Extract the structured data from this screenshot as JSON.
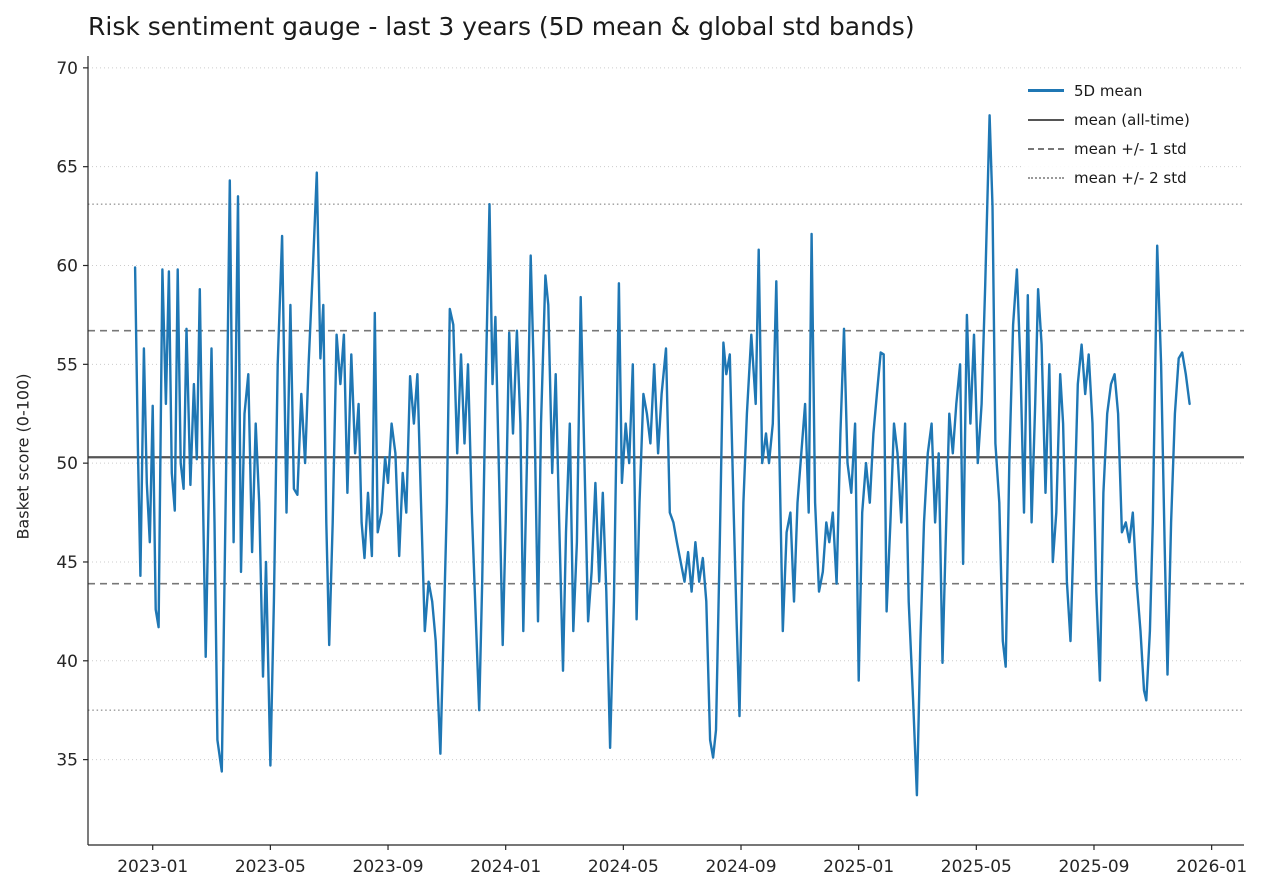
{
  "chart_data": {
    "type": "line",
    "title": "Risk sentiment gauge - last 3 years (5D mean & global std bands)",
    "xlabel": "",
    "ylabel": "Basket score (0-100)",
    "x_unit": "months since 2023-01",
    "xlim": [
      -2.2,
      37.1
    ],
    "ylim": [
      30.68,
      70.6
    ],
    "grid": "horizontal-dotted",
    "legend_position": "upper right",
    "series_color": "#1f77b4",
    "mean_color": "#555555",
    "std1_color": "#777777",
    "std2_color": "#999999",
    "grid_color": "#cccccc",
    "mean": 50.3,
    "std": 6.4,
    "band_plus_1std": 56.7,
    "band_minus_1std": 43.9,
    "band_plus_2std": 63.1,
    "band_minus_2std": 37.5,
    "yticks": [
      35,
      40,
      45,
      50,
      55,
      60,
      65,
      70
    ],
    "xticks": [
      {
        "t": 0,
        "label": "2023-01"
      },
      {
        "t": 4,
        "label": "2023-05"
      },
      {
        "t": 8,
        "label": "2023-09"
      },
      {
        "t": 12,
        "label": "2024-01"
      },
      {
        "t": 16,
        "label": "2024-05"
      },
      {
        "t": 20,
        "label": "2024-09"
      },
      {
        "t": 24,
        "label": "2025-01"
      },
      {
        "t": 28,
        "label": "2025-05"
      },
      {
        "t": 32,
        "label": "2025-09"
      },
      {
        "t": 36,
        "label": "2026-01"
      }
    ],
    "legend": [
      {
        "label": "5D mean",
        "style": "solid",
        "color": "#1f77b4",
        "width": 3
      },
      {
        "label": "mean (all-time)",
        "style": "solid",
        "color": "#555555",
        "width": 2
      },
      {
        "label": "mean +/- 1 std",
        "style": "dashed",
        "color": "#777777",
        "width": 1.6
      },
      {
        "label": "mean +/- 2 std",
        "style": "dotted",
        "color": "#999999",
        "width": 1.4
      }
    ],
    "points": [
      [
        -0.6,
        59.9
      ],
      [
        -0.5,
        50.5
      ],
      [
        -0.42,
        44.3
      ],
      [
        -0.3,
        55.8
      ],
      [
        -0.2,
        49.0
      ],
      [
        -0.1,
        46.0
      ],
      [
        0.0,
        52.9
      ],
      [
        0.1,
        42.6
      ],
      [
        0.2,
        41.7
      ],
      [
        0.33,
        59.8
      ],
      [
        0.45,
        53.0
      ],
      [
        0.55,
        59.7
      ],
      [
        0.65,
        49.5
      ],
      [
        0.75,
        47.6
      ],
      [
        0.85,
        59.8
      ],
      [
        0.95,
        50.0
      ],
      [
        1.05,
        48.7
      ],
      [
        1.15,
        56.8
      ],
      [
        1.28,
        48.9
      ],
      [
        1.4,
        54.0
      ],
      [
        1.5,
        50.2
      ],
      [
        1.6,
        58.8
      ],
      [
        1.7,
        49.0
      ],
      [
        1.8,
        40.2
      ],
      [
        1.9,
        48.0
      ],
      [
        2.0,
        55.8
      ],
      [
        2.1,
        47.0
      ],
      [
        2.2,
        36.0
      ],
      [
        2.35,
        34.4
      ],
      [
        2.5,
        50.0
      ],
      [
        2.62,
        64.3
      ],
      [
        2.75,
        46.0
      ],
      [
        2.9,
        63.5
      ],
      [
        3.0,
        44.5
      ],
      [
        3.12,
        52.5
      ],
      [
        3.25,
        54.5
      ],
      [
        3.38,
        45.5
      ],
      [
        3.5,
        52.0
      ],
      [
        3.62,
        48.0
      ],
      [
        3.75,
        39.2
      ],
      [
        3.85,
        45.0
      ],
      [
        4.0,
        34.7
      ],
      [
        4.12,
        43.0
      ],
      [
        4.25,
        55.0
      ],
      [
        4.4,
        61.5
      ],
      [
        4.55,
        47.5
      ],
      [
        4.68,
        58.0
      ],
      [
        4.8,
        48.7
      ],
      [
        4.92,
        48.4
      ],
      [
        5.05,
        53.5
      ],
      [
        5.18,
        50.0
      ],
      [
        5.3,
        55.0
      ],
      [
        5.45,
        60.0
      ],
      [
        5.58,
        64.7
      ],
      [
        5.7,
        55.3
      ],
      [
        5.8,
        58.0
      ],
      [
        5.9,
        47.0
      ],
      [
        6.0,
        40.8
      ],
      [
        6.12,
        47.0
      ],
      [
        6.25,
        56.5
      ],
      [
        6.38,
        54.0
      ],
      [
        6.5,
        56.5
      ],
      [
        6.62,
        48.5
      ],
      [
        6.75,
        55.5
      ],
      [
        6.88,
        50.5
      ],
      [
        7.0,
        53.0
      ],
      [
        7.1,
        47.0
      ],
      [
        7.2,
        45.2
      ],
      [
        7.32,
        48.5
      ],
      [
        7.45,
        45.3
      ],
      [
        7.55,
        57.6
      ],
      [
        7.65,
        46.5
      ],
      [
        7.78,
        47.5
      ],
      [
        7.9,
        50.3
      ],
      [
        8.0,
        49.0
      ],
      [
        8.12,
        52.0
      ],
      [
        8.25,
        50.5
      ],
      [
        8.38,
        45.3
      ],
      [
        8.5,
        49.5
      ],
      [
        8.62,
        47.5
      ],
      [
        8.75,
        54.4
      ],
      [
        8.88,
        52.0
      ],
      [
        9.0,
        54.5
      ],
      [
        9.12,
        48.0
      ],
      [
        9.25,
        41.5
      ],
      [
        9.38,
        44.0
      ],
      [
        9.5,
        43.0
      ],
      [
        9.62,
        41.0
      ],
      [
        9.78,
        35.3
      ],
      [
        9.9,
        42.0
      ],
      [
        10.0,
        48.0
      ],
      [
        10.1,
        57.8
      ],
      [
        10.22,
        57.0
      ],
      [
        10.35,
        50.5
      ],
      [
        10.48,
        55.5
      ],
      [
        10.6,
        51.0
      ],
      [
        10.72,
        55.0
      ],
      [
        10.85,
        47.5
      ],
      [
        10.95,
        43.5
      ],
      [
        11.1,
        37.5
      ],
      [
        11.2,
        44.0
      ],
      [
        11.32,
        54.0
      ],
      [
        11.45,
        63.1
      ],
      [
        11.55,
        54.0
      ],
      [
        11.65,
        57.4
      ],
      [
        11.78,
        49.0
      ],
      [
        11.9,
        40.8
      ],
      [
        12.0,
        47.0
      ],
      [
        12.12,
        56.6
      ],
      [
        12.25,
        51.5
      ],
      [
        12.38,
        56.7
      ],
      [
        12.5,
        52.0
      ],
      [
        12.6,
        41.5
      ],
      [
        12.72,
        50.0
      ],
      [
        12.85,
        60.5
      ],
      [
        12.95,
        55.0
      ],
      [
        13.1,
        42.0
      ],
      [
        13.2,
        52.0
      ],
      [
        13.35,
        59.5
      ],
      [
        13.45,
        58.0
      ],
      [
        13.58,
        49.5
      ],
      [
        13.7,
        54.5
      ],
      [
        13.82,
        47.0
      ],
      [
        13.95,
        39.5
      ],
      [
        14.05,
        46.5
      ],
      [
        14.18,
        52.0
      ],
      [
        14.3,
        41.5
      ],
      [
        14.42,
        46.0
      ],
      [
        14.55,
        58.4
      ],
      [
        14.68,
        50.0
      ],
      [
        14.8,
        42.0
      ],
      [
        14.92,
        44.5
      ],
      [
        15.05,
        49.0
      ],
      [
        15.18,
        44.0
      ],
      [
        15.3,
        48.5
      ],
      [
        15.42,
        43.5
      ],
      [
        15.55,
        35.6
      ],
      [
        15.68,
        43.0
      ],
      [
        15.85,
        59.1
      ],
      [
        15.95,
        49.0
      ],
      [
        16.08,
        52.0
      ],
      [
        16.2,
        50.0
      ],
      [
        16.32,
        55.0
      ],
      [
        16.45,
        42.1
      ],
      [
        16.55,
        48.0
      ],
      [
        16.68,
        53.5
      ],
      [
        16.8,
        52.5
      ],
      [
        16.92,
        51.0
      ],
      [
        17.05,
        55.0
      ],
      [
        17.18,
        50.5
      ],
      [
        17.3,
        53.5
      ],
      [
        17.45,
        55.8
      ],
      [
        17.58,
        47.5
      ],
      [
        17.7,
        47.0
      ],
      [
        17.82,
        46.0
      ],
      [
        17.95,
        45.0
      ],
      [
        18.08,
        44.0
      ],
      [
        18.2,
        45.5
      ],
      [
        18.32,
        43.5
      ],
      [
        18.45,
        46.0
      ],
      [
        18.58,
        44.0
      ],
      [
        18.7,
        45.2
      ],
      [
        18.82,
        43.0
      ],
      [
        18.95,
        36.0
      ],
      [
        19.05,
        35.1
      ],
      [
        19.15,
        36.5
      ],
      [
        19.28,
        46.0
      ],
      [
        19.4,
        56.1
      ],
      [
        19.5,
        54.5
      ],
      [
        19.62,
        55.5
      ],
      [
        19.75,
        47.5
      ],
      [
        19.85,
        42.0
      ],
      [
        19.95,
        37.2
      ],
      [
        20.08,
        48.0
      ],
      [
        20.2,
        52.5
      ],
      [
        20.35,
        56.5
      ],
      [
        20.5,
        53.0
      ],
      [
        20.6,
        60.8
      ],
      [
        20.72,
        50.0
      ],
      [
        20.85,
        51.5
      ],
      [
        20.95,
        50.0
      ],
      [
        21.08,
        52.0
      ],
      [
        21.2,
        59.2
      ],
      [
        21.3,
        51.0
      ],
      [
        21.42,
        41.5
      ],
      [
        21.55,
        46.5
      ],
      [
        21.68,
        47.5
      ],
      [
        21.8,
        43.0
      ],
      [
        21.92,
        48.0
      ],
      [
        22.05,
        50.5
      ],
      [
        22.18,
        53.0
      ],
      [
        22.3,
        47.5
      ],
      [
        22.4,
        61.6
      ],
      [
        22.52,
        48.0
      ],
      [
        22.65,
        43.5
      ],
      [
        22.78,
        44.5
      ],
      [
        22.9,
        47.0
      ],
      [
        23.0,
        46.0
      ],
      [
        23.12,
        47.5
      ],
      [
        23.25,
        43.9
      ],
      [
        23.38,
        51.5
      ],
      [
        23.5,
        56.8
      ],
      [
        23.62,
        50.0
      ],
      [
        23.75,
        48.5
      ],
      [
        23.88,
        52.0
      ],
      [
        24.0,
        39.0
      ],
      [
        24.12,
        47.5
      ],
      [
        24.25,
        50.0
      ],
      [
        24.38,
        48.0
      ],
      [
        24.5,
        51.5
      ],
      [
        24.62,
        53.5
      ],
      [
        24.75,
        55.6
      ],
      [
        24.85,
        55.5
      ],
      [
        24.95,
        42.5
      ],
      [
        25.08,
        47.0
      ],
      [
        25.2,
        52.0
      ],
      [
        25.32,
        50.5
      ],
      [
        25.45,
        47.0
      ],
      [
        25.58,
        52.0
      ],
      [
        25.7,
        43.0
      ],
      [
        25.85,
        38.0
      ],
      [
        25.98,
        33.2
      ],
      [
        26.1,
        41.0
      ],
      [
        26.22,
        47.0
      ],
      [
        26.35,
        50.5
      ],
      [
        26.48,
        52.0
      ],
      [
        26.6,
        47.0
      ],
      [
        26.72,
        50.5
      ],
      [
        26.85,
        39.9
      ],
      [
        26.95,
        45.5
      ],
      [
        27.08,
        52.5
      ],
      [
        27.2,
        50.5
      ],
      [
        27.32,
        53.0
      ],
      [
        27.45,
        55.0
      ],
      [
        27.55,
        44.9
      ],
      [
        27.68,
        57.5
      ],
      [
        27.8,
        52.0
      ],
      [
        27.92,
        56.5
      ],
      [
        28.05,
        50.0
      ],
      [
        28.18,
        53.0
      ],
      [
        28.3,
        59.0
      ],
      [
        28.45,
        67.6
      ],
      [
        28.55,
        63.0
      ],
      [
        28.65,
        51.0
      ],
      [
        28.78,
        48.0
      ],
      [
        28.9,
        41.0
      ],
      [
        29.0,
        39.7
      ],
      [
        29.12,
        50.0
      ],
      [
        29.25,
        57.0
      ],
      [
        29.38,
        59.8
      ],
      [
        29.5,
        55.0
      ],
      [
        29.62,
        47.5
      ],
      [
        29.75,
        58.5
      ],
      [
        29.88,
        47.0
      ],
      [
        30.0,
        53.0
      ],
      [
        30.1,
        58.8
      ],
      [
        30.22,
        56.0
      ],
      [
        30.35,
        48.5
      ],
      [
        30.48,
        55.0
      ],
      [
        30.6,
        45.0
      ],
      [
        30.72,
        47.5
      ],
      [
        30.85,
        54.5
      ],
      [
        30.95,
        52.0
      ],
      [
        31.08,
        44.0
      ],
      [
        31.2,
        41.0
      ],
      [
        31.32,
        47.0
      ],
      [
        31.45,
        54.0
      ],
      [
        31.58,
        56.0
      ],
      [
        31.7,
        53.5
      ],
      [
        31.82,
        55.5
      ],
      [
        31.95,
        52.0
      ],
      [
        32.08,
        43.5
      ],
      [
        32.2,
        39.0
      ],
      [
        32.32,
        48.5
      ],
      [
        32.45,
        52.5
      ],
      [
        32.58,
        54.0
      ],
      [
        32.7,
        54.5
      ],
      [
        32.82,
        52.5
      ],
      [
        32.95,
        46.5
      ],
      [
        33.08,
        47.0
      ],
      [
        33.2,
        46.0
      ],
      [
        33.32,
        47.5
      ],
      [
        33.45,
        44.0
      ],
      [
        33.58,
        41.5
      ],
      [
        33.7,
        38.5
      ],
      [
        33.78,
        38.0
      ],
      [
        33.9,
        41.5
      ],
      [
        34.0,
        47.0
      ],
      [
        34.15,
        61.0
      ],
      [
        34.28,
        55.0
      ],
      [
        34.4,
        46.0
      ],
      [
        34.5,
        39.3
      ],
      [
        34.62,
        47.0
      ],
      [
        34.75,
        52.5
      ],
      [
        34.88,
        55.3
      ],
      [
        35.0,
        55.6
      ],
      [
        35.12,
        54.5
      ],
      [
        35.25,
        53.0
      ]
    ]
  }
}
